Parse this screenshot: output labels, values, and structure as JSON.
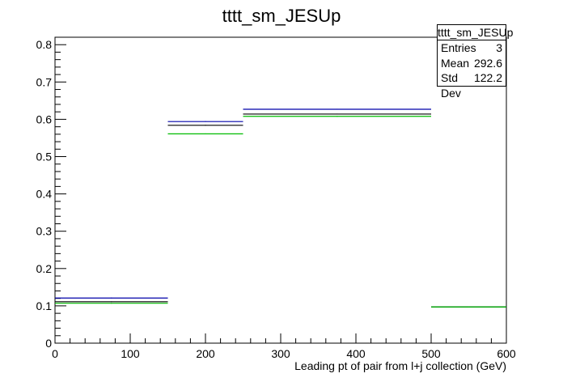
{
  "chart_data": {
    "type": "histogram",
    "title": "tttt_sm_JESUp",
    "xlabel": "Leading pt of pair from l+j collection (GeV)",
    "ylabel": "",
    "xlim": [
      0,
      600
    ],
    "ylim": [
      0,
      0.82
    ],
    "x_ticks": [
      0,
      100,
      200,
      300,
      400,
      500,
      600
    ],
    "y_ticks": [
      0,
      0.1,
      0.2,
      0.3,
      0.4,
      0.5,
      0.6,
      0.7,
      0.8
    ],
    "bin_edges": [
      0,
      150,
      250,
      500,
      600
    ],
    "series": [
      {
        "color": "#0000aa",
        "values": [
          0.121,
          0.594,
          0.627,
          0.097
        ]
      },
      {
        "color": "#000000",
        "values": [
          0.111,
          0.584,
          0.614,
          0.097
        ]
      },
      {
        "color": "#00bb00",
        "values": [
          0.107,
          0.561,
          0.608,
          0.097
        ]
      }
    ],
    "stats_box": {
      "title": "tttt_sm_JESUp",
      "rows": [
        {
          "label": "Entries",
          "value": "3"
        },
        {
          "label": "Mean",
          "value": "292.6"
        },
        {
          "label": "Std Dev",
          "value": "122.2"
        }
      ]
    }
  }
}
